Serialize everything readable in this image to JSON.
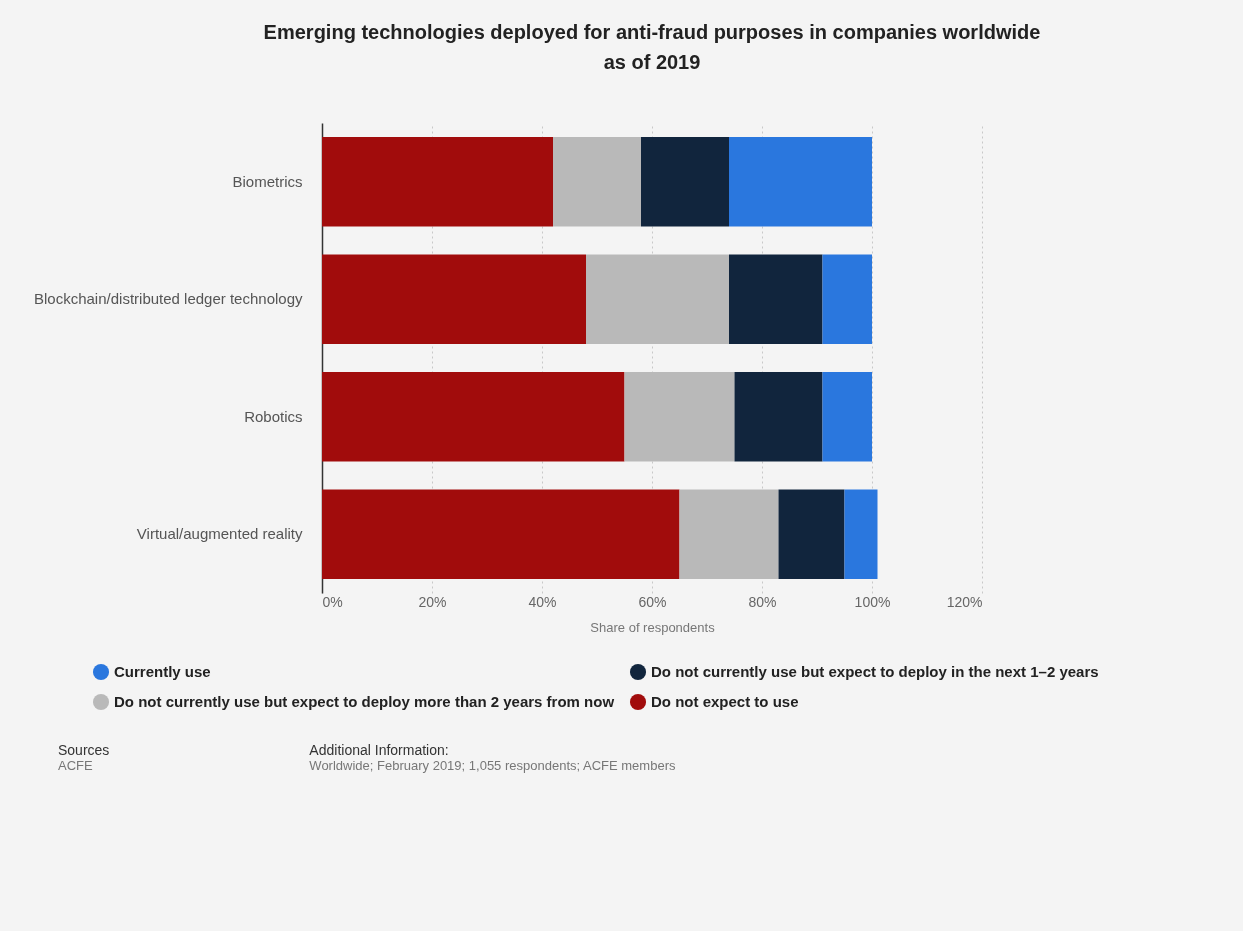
{
  "chart_data": {
    "type": "bar",
    "orientation": "horizontal",
    "stacked": true,
    "title": "Emerging technologies deployed for anti-fraud purposes in companies worldwide as of 2019",
    "xlabel": "Share of respondents",
    "categories": [
      "Biometrics",
      "Blockchain/distributed ledger technology",
      "Robotics",
      "Virtual/augmented reality"
    ],
    "series": [
      {
        "name": "Do not expect to use",
        "color": "#a10c0c",
        "values": [
          42,
          48,
          55,
          65
        ]
      },
      {
        "name": "Do not currently use but expect to deploy more than 2 years from now",
        "color": "#b9b9b9",
        "values": [
          16,
          26,
          20,
          18
        ]
      },
      {
        "name": "Do not currently use but expect to deploy in the next 1–2 years",
        "color": "#11253d",
        "values": [
          16,
          17,
          16,
          12
        ]
      },
      {
        "name": "Currently use",
        "color": "#2a77de",
        "values": [
          26,
          9,
          9,
          6
        ]
      }
    ],
    "xlim": [
      0,
      120
    ],
    "xticks": [
      {
        "value": 0,
        "label": "0%"
      },
      {
        "value": 20,
        "label": "20%"
      },
      {
        "value": 40,
        "label": "40%"
      },
      {
        "value": 60,
        "label": "60%"
      },
      {
        "value": 80,
        "label": "80%"
      },
      {
        "value": 100,
        "label": "100%"
      },
      {
        "value": 120,
        "label": "120%"
      }
    ],
    "grid": "x",
    "legend": "bottom",
    "annotations": [
      "Sources",
      "ACFE",
      "Additional Information:",
      "Worldwide; February 2019; 1,055 respondents; ACFE members"
    ]
  }
}
